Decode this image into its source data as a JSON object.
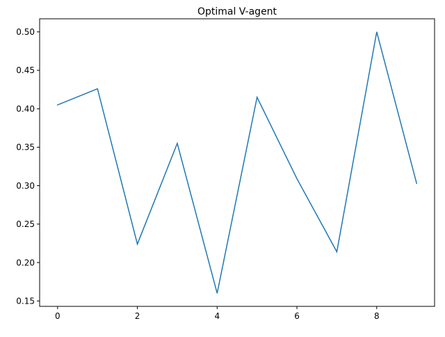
{
  "chart_data": {
    "type": "line",
    "title": "Optimal V-agent",
    "xlabel": "",
    "ylabel": "",
    "x": [
      0,
      1,
      2,
      3,
      4,
      5,
      6,
      7,
      8,
      9
    ],
    "series": [
      {
        "values": [
          0.405,
          0.426,
          0.224,
          0.355,
          0.16,
          0.415,
          0.309,
          0.214,
          0.5,
          0.303
        ],
        "color": "#1f77b4"
      }
    ],
    "xlim": [
      -0.45,
      9.45
    ],
    "ylim": [
      0.143,
      0.517
    ],
    "xticks": [
      0,
      2,
      4,
      6,
      8
    ],
    "xtick_labels": [
      "0",
      "2",
      "4",
      "6",
      "8"
    ],
    "yticks": [
      0.15,
      0.2,
      0.25,
      0.3,
      0.35,
      0.4,
      0.45,
      0.5
    ],
    "ytick_labels": [
      "0.15",
      "0.20",
      "0.25",
      "0.30",
      "0.35",
      "0.40",
      "0.45",
      "0.50"
    ],
    "grid": false,
    "legend": "none"
  }
}
